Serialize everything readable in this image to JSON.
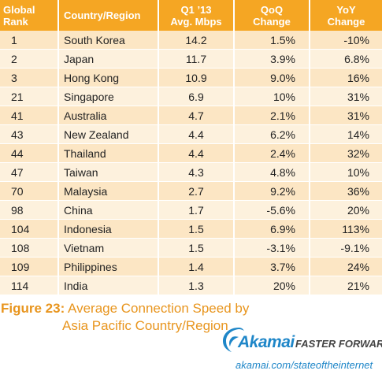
{
  "table": {
    "headers": {
      "rank": [
        "Global",
        "Rank"
      ],
      "country": [
        "Country/Region"
      ],
      "speed": [
        "Q1 ’13",
        "Avg. Mbps"
      ],
      "qoq": [
        "QoQ",
        "Change"
      ],
      "yoy": [
        "YoY",
        "Change"
      ]
    },
    "rows": [
      {
        "rank": "1",
        "country": "South Korea",
        "speed": "14.2",
        "qoq": "1.5%",
        "yoy": "-10%"
      },
      {
        "rank": "2",
        "country": "Japan",
        "speed": "11.7",
        "qoq": "3.9%",
        "yoy": "6.8%"
      },
      {
        "rank": "3",
        "country": "Hong Kong",
        "speed": "10.9",
        "qoq": "9.0%",
        "yoy": "16%"
      },
      {
        "rank": "21",
        "country": "Singapore",
        "speed": "6.9",
        "qoq": "10%",
        "yoy": "31%"
      },
      {
        "rank": "41",
        "country": "Australia",
        "speed": "4.7",
        "qoq": "2.1%",
        "yoy": "31%"
      },
      {
        "rank": "43",
        "country": "New Zealand",
        "speed": "4.4",
        "qoq": "6.2%",
        "yoy": "14%"
      },
      {
        "rank": "44",
        "country": "Thailand",
        "speed": "4.4",
        "qoq": "2.4%",
        "yoy": "32%"
      },
      {
        "rank": "47",
        "country": "Taiwan",
        "speed": "4.3",
        "qoq": "4.8%",
        "yoy": "10%"
      },
      {
        "rank": "70",
        "country": "Malaysia",
        "speed": "2.7",
        "qoq": "9.2%",
        "yoy": "36%"
      },
      {
        "rank": "98",
        "country": "China",
        "speed": "1.7",
        "qoq": "-5.6%",
        "yoy": "20%"
      },
      {
        "rank": "104",
        "country": "Indonesia",
        "speed": "1.5",
        "qoq": "6.9%",
        "yoy": "113%"
      },
      {
        "rank": "108",
        "country": "Vietnam",
        "speed": "1.5",
        "qoq": "-3.1%",
        "yoy": "-9.1%"
      },
      {
        "rank": "109",
        "country": "Philippines",
        "speed": "1.4",
        "qoq": "3.7%",
        "yoy": "24%"
      },
      {
        "rank": "114",
        "country": "India",
        "speed": "1.3",
        "qoq": "20%",
        "yoy": "21%"
      }
    ]
  },
  "caption": {
    "figure_label": "Figure 23:",
    "title_line1": "Average Connection Speed by",
    "title_line2": "Asia Pacific Country/Region"
  },
  "branding": {
    "logo_name": "Akamai",
    "tagline": "FASTER FORWARD",
    "url": "akamai.com/stateoftheinternet",
    "brand_color": "#1e86c8",
    "accent_color": "#f5a623"
  }
}
